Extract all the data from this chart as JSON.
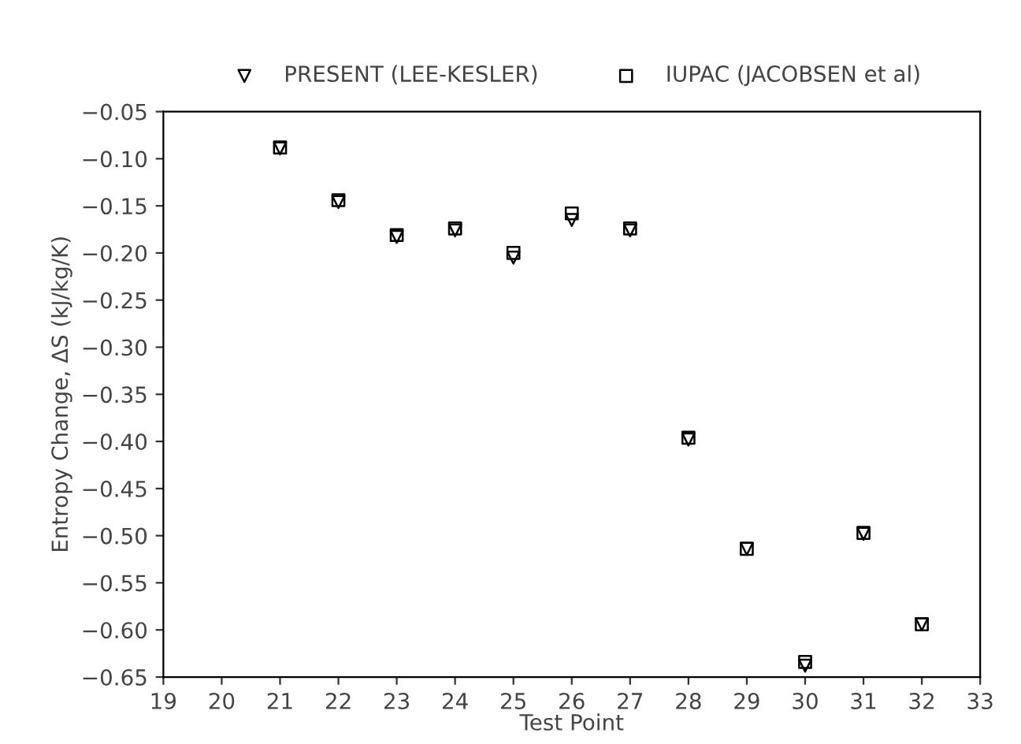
{
  "chart_data": {
    "type": "scatter",
    "xlabel": "Test Point",
    "ylabel": "Entropy Change, ΔS (kJ/kg/K)",
    "x": [
      21,
      22,
      23,
      24,
      25,
      26,
      27,
      28,
      29,
      30,
      31,
      32
    ],
    "series": [
      {
        "name": "PRESENT (LEE-KESLER)",
        "color": "#000000",
        "marker": "triangle",
        "values": [
          -0.089,
          -0.146,
          -0.183,
          -0.176,
          -0.205,
          -0.165,
          -0.176,
          -0.398,
          -0.514,
          -0.638,
          -0.498,
          -0.594
        ]
      },
      {
        "name": "IUPAC (JACOBSEN et al)",
        "color": "#000000",
        "marker": "square",
        "values": [
          -0.088,
          -0.144,
          -0.181,
          -0.174,
          -0.2,
          -0.158,
          -0.174,
          -0.396,
          -0.514,
          -0.634,
          -0.497,
          -0.594
        ]
      }
    ],
    "xlim": [
      19,
      33
    ],
    "xticks": [
      19,
      20,
      21,
      22,
      23,
      24,
      25,
      26,
      27,
      28,
      29,
      30,
      31,
      32,
      33
    ],
    "ylim": [
      -0.65,
      -0.05
    ],
    "yticks": [
      {
        "value": -0.65,
        "label": "−0.65"
      },
      {
        "value": -0.6,
        "label": "−0.60"
      },
      {
        "value": -0.55,
        "label": "−0.55"
      },
      {
        "value": -0.5,
        "label": "−0.50"
      },
      {
        "value": -0.45,
        "label": "−0.45"
      },
      {
        "value": -0.4,
        "label": "−0.40"
      },
      {
        "value": -0.35,
        "label": "−0.35"
      },
      {
        "value": -0.3,
        "label": "−0.30"
      },
      {
        "value": -0.25,
        "label": "−0.25"
      },
      {
        "value": -0.2,
        "label": "−0.20"
      },
      {
        "value": -0.15,
        "label": "−0.15"
      },
      {
        "value": -0.1,
        "label": "−0.10"
      },
      {
        "value": -0.05,
        "label": "−0.05"
      }
    ],
    "grid": false,
    "legend": "top"
  }
}
